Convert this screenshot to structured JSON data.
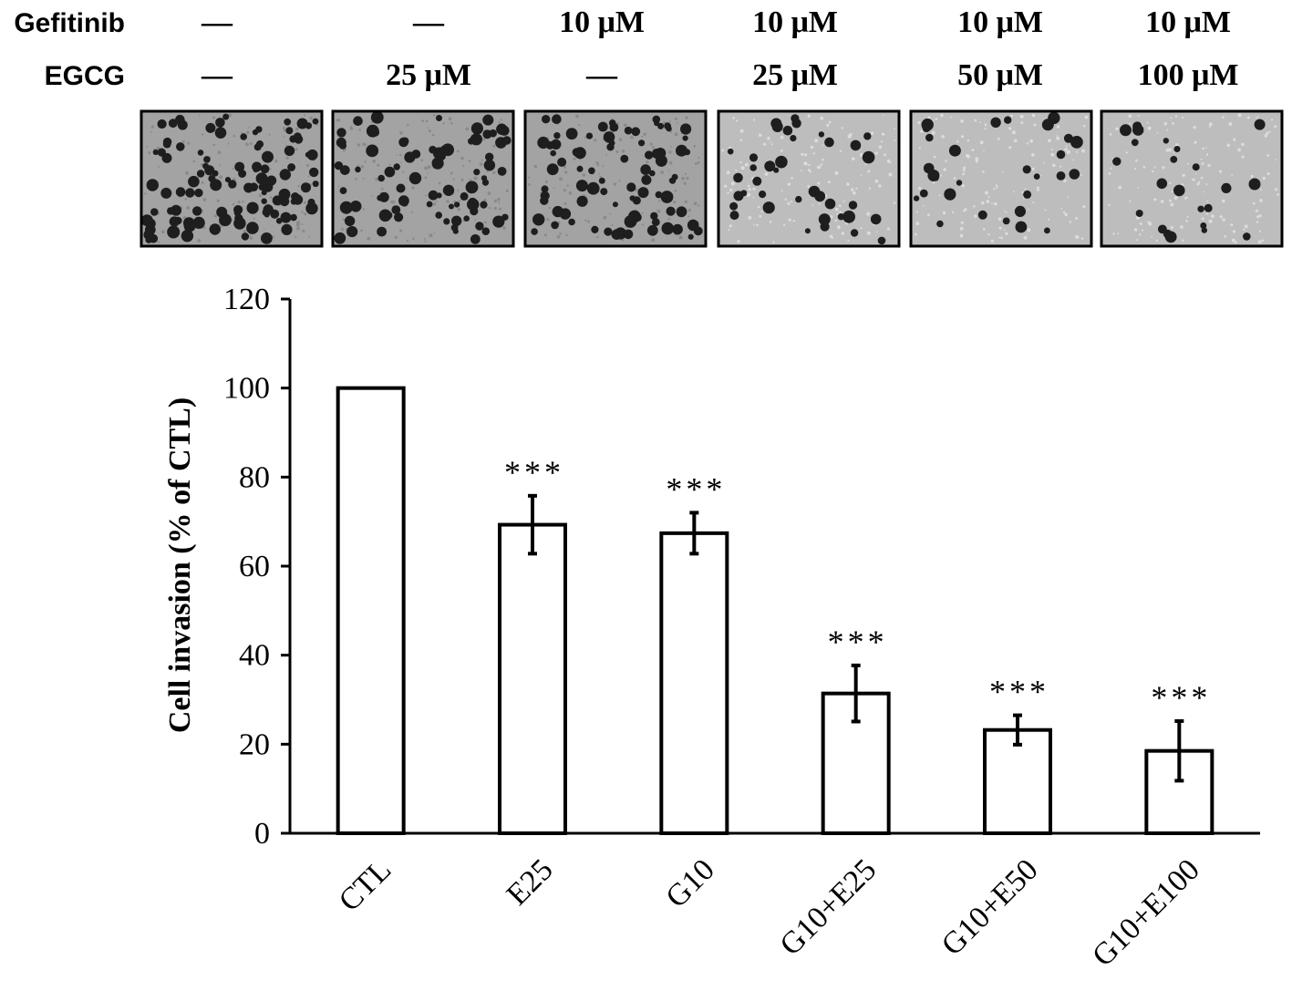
{
  "treatment_table": {
    "rows": [
      {
        "label": "Gefitinib",
        "cells": [
          "—",
          "—",
          "10 μM",
          "10 μM",
          "10 μM",
          "10 μM"
        ]
      },
      {
        "label": "EGCG",
        "cells": [
          "—",
          "25 μM",
          "—",
          "25 μM",
          "50 μM",
          "100 μM"
        ]
      }
    ]
  },
  "micrographs": [
    {
      "dot_density": 0.95
    },
    {
      "dot_density": 0.7
    },
    {
      "dot_density": 0.68
    },
    {
      "dot_density": 0.32
    },
    {
      "dot_density": 0.24
    },
    {
      "dot_density": 0.19
    }
  ],
  "chart_data": {
    "type": "bar",
    "categories": [
      "CTL",
      "E25",
      "G10",
      "G10+E25",
      "G10+E50",
      "G10+E100"
    ],
    "values": [
      100,
      69.3,
      67.4,
      31.4,
      23.2,
      18.5
    ],
    "errors": [
      0,
      6.5,
      4.6,
      6.3,
      3.3,
      6.7
    ],
    "annotations": [
      "",
      "***",
      "***",
      "***",
      "***",
      "***"
    ],
    "title": "",
    "xlabel": "",
    "ylabel": "Cell invasion (% of CTL)",
    "ylim": [
      0,
      120
    ],
    "yticks": [
      0,
      20,
      40,
      60,
      80,
      100,
      120
    ],
    "bar_fill": "#ffffff",
    "bar_stroke": "#000000",
    "grid": false,
    "legend": "none"
  }
}
